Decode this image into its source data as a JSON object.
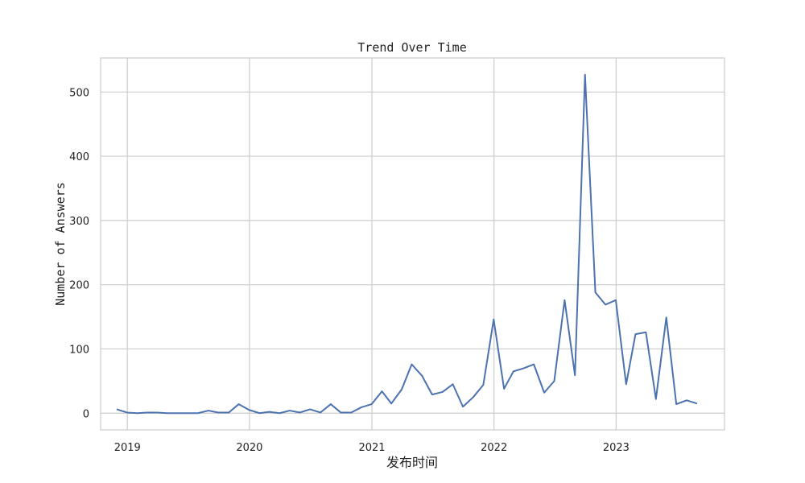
{
  "chart_data": {
    "type": "line",
    "title": "Trend Over Time",
    "xlabel": "发布时间",
    "ylabel": "Number of Answers",
    "x_tick_labels": [
      "2019",
      "2020",
      "2021",
      "2022",
      "2023"
    ],
    "y_ticks": [
      0,
      100,
      200,
      300,
      400,
      500
    ],
    "xlim": [
      "2018-10-13",
      "2023-11-21"
    ],
    "ylim": [
      -26,
      553
    ],
    "grid": true,
    "line_color": "#4c72b0",
    "grid_color": "#cccccc",
    "series": [
      {
        "x": [
          "2018-11-30",
          "2018-12-31",
          "2019-01-31",
          "2019-02-28",
          "2019-03-31",
          "2019-04-30",
          "2019-05-31",
          "2019-06-30",
          "2019-07-31",
          "2019-08-31",
          "2019-09-30",
          "2019-10-31",
          "2019-11-30",
          "2019-12-31",
          "2020-01-31",
          "2020-02-29",
          "2020-03-31",
          "2020-04-30",
          "2020-05-31",
          "2020-06-30",
          "2020-07-31",
          "2020-08-31",
          "2020-09-30",
          "2020-10-31",
          "2020-11-30",
          "2020-12-31",
          "2021-01-31",
          "2021-02-28",
          "2021-03-31",
          "2021-04-30",
          "2021-05-31",
          "2021-06-30",
          "2021-07-31",
          "2021-08-31",
          "2021-09-30",
          "2021-10-31",
          "2021-11-30",
          "2021-12-31",
          "2022-01-31",
          "2022-02-28",
          "2022-03-31",
          "2022-04-30",
          "2022-05-31",
          "2022-06-30",
          "2022-07-31",
          "2022-08-31",
          "2022-09-30",
          "2022-10-31",
          "2022-11-30",
          "2022-12-31",
          "2023-01-31",
          "2023-02-28",
          "2023-03-31",
          "2023-04-30",
          "2023-05-31",
          "2023-06-30",
          "2023-07-31",
          "2023-08-31"
        ],
        "values": [
          6,
          1,
          0,
          1,
          1,
          0,
          0,
          0,
          0,
          4,
          1,
          1,
          14,
          5,
          0,
          2,
          0,
          4,
          1,
          6,
          1,
          14,
          1,
          1,
          9,
          14,
          34,
          15,
          37,
          76,
          58,
          29,
          33,
          45,
          10,
          25,
          44,
          146,
          38,
          65,
          70,
          76,
          32,
          50,
          176,
          59,
          527,
          188,
          169,
          176,
          45,
          123,
          126,
          22,
          149,
          14,
          20,
          15
        ]
      }
    ]
  }
}
